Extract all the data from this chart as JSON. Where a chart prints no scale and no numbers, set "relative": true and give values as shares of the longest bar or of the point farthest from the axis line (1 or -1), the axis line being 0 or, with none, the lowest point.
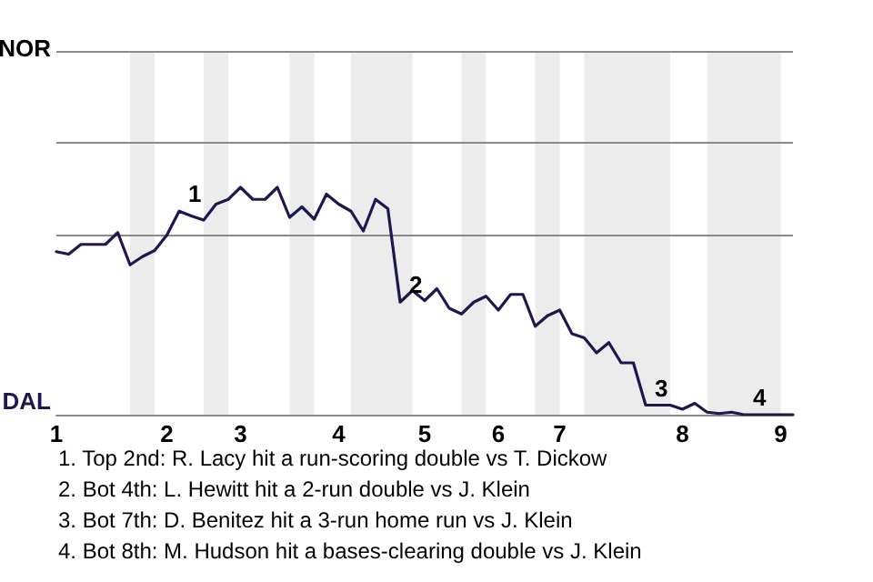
{
  "chart_data": {
    "type": "line",
    "relative": true,
    "categories": [
      "1",
      null,
      null,
      null,
      null,
      null,
      null,
      null,
      null,
      "2",
      null,
      null,
      null,
      null,
      null,
      "3",
      null,
      null,
      null,
      null,
      null,
      null,
      null,
      "4",
      null,
      null,
      null,
      null,
      null,
      null,
      "5",
      null,
      null,
      null,
      null,
      null,
      "6",
      null,
      null,
      null,
      null,
      "7",
      null,
      null,
      null,
      null,
      null,
      null,
      null,
      null,
      null,
      "8",
      null,
      null,
      null,
      null,
      null,
      null,
      null,
      "9",
      null
    ],
    "series": [
      {
        "color": "#1a1a4e",
        "values": [
          0.717,
          0.706,
          0.749,
          0.749,
          0.749,
          0.801,
          0.659,
          0.695,
          0.722,
          0.79,
          0.895,
          0.874,
          0.856,
          0.926,
          0.947,
          1,
          0.947,
          0.947,
          1,
          0.868,
          0.914,
          0.86,
          0.97,
          0.926,
          0.895,
          0.808,
          0.947,
          0.906,
          0.495,
          0.546,
          0.502,
          0.554,
          0.468,
          0.443,
          0.495,
          0.521,
          0.46,
          0.529,
          0.529,
          0.389,
          0.435,
          0.46,
          0.356,
          0.338,
          0.272,
          0.317,
          0.228,
          0.228,
          0.042,
          0.042,
          0.042,
          0.024,
          0.05,
          0.011,
          0.005,
          0.011,
          0,
          0,
          0,
          0,
          0
        ]
      }
    ],
    "marker": "none",
    "ref_lines": [
      {
        "axis": "y",
        "value": 0.785,
        "color": "#8a8a8a"
      }
    ],
    "annotations": [
      "NOR",
      "DAL",
      {
        "text": "1",
        "y": 0.895
      },
      {
        "text": "2",
        "y": 0.495
      },
      {
        "text": "3",
        "y": 0.042
      },
      {
        "text": "4",
        "y": 0
      },
      "1. Top 2nd: R. Lacy hit a run-scoring double vs T. Dickow",
      "2. Bot 4th: L. Hewitt hit a 2-run double vs J. Klein",
      "3. Bot 7th: D. Benitez hit a 3-run home run vs J. Klein",
      "4. Bot 8th: M. Hudson hit a bases-clearing double vs J. Klein"
    ]
  }
}
